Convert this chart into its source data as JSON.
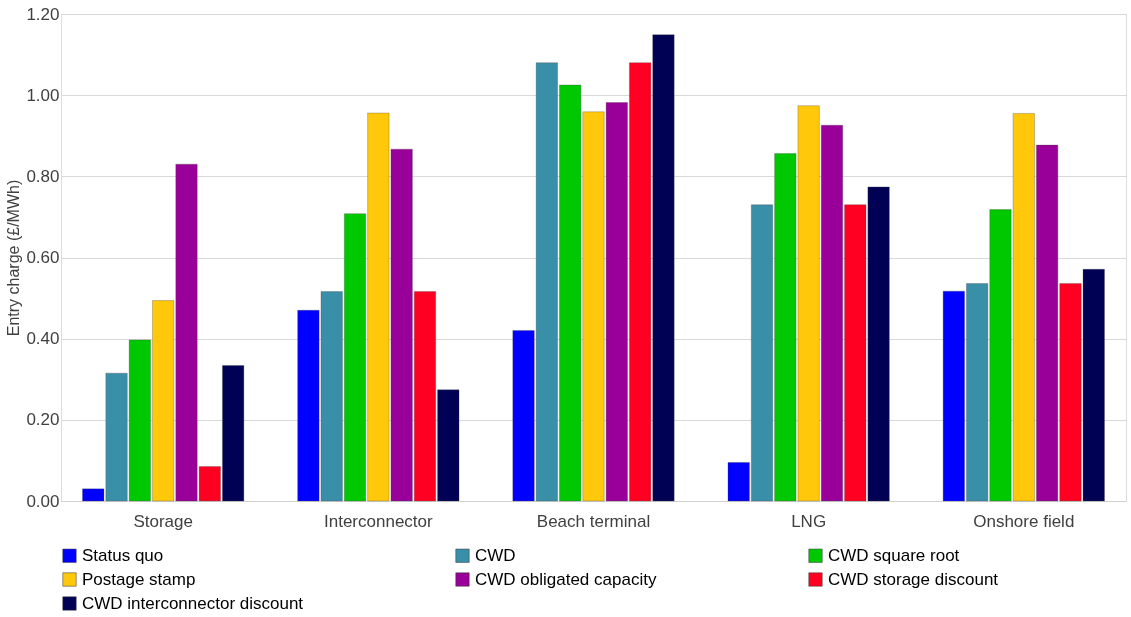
{
  "chart_data": {
    "type": "bar",
    "ylabel": "Entry charge (£/MWh)",
    "categories": [
      "Storage",
      "Interconnector",
      "Beach terminal",
      "LNG",
      "Onshore field"
    ],
    "series": [
      {
        "name": "Status quo",
        "color": "#0000ff",
        "values": [
          0.03,
          0.47,
          0.42,
          0.095,
          0.517
        ]
      },
      {
        "name": "CWD",
        "color": "#3a8fa8",
        "values": [
          0.315,
          0.516,
          1.08,
          0.73,
          0.536
        ]
      },
      {
        "name": "CWD square root",
        "color": "#00c800",
        "values": [
          0.397,
          0.708,
          1.025,
          0.856,
          0.718
        ]
      },
      {
        "name": "Postage stamp",
        "color": "#ffc80a",
        "values": [
          0.494,
          0.956,
          0.959,
          0.974,
          0.955
        ]
      },
      {
        "name": "CWD obligated capacity",
        "color": "#990099",
        "values": [
          0.83,
          0.867,
          0.982,
          0.926,
          0.877
        ]
      },
      {
        "name": "CWD storage discount",
        "color": "#ff0022",
        "values": [
          0.085,
          0.516,
          1.08,
          0.73,
          0.536
        ]
      },
      {
        "name": "CWD interconnector discount",
        "color": "#000055",
        "values": [
          0.334,
          0.274,
          1.149,
          0.774,
          0.571
        ]
      }
    ],
    "ylim": [
      0,
      1.2
    ],
    "yticks": [
      {
        "value": 0,
        "label": "0.00"
      },
      {
        "value": 0.2,
        "label": "0.20"
      },
      {
        "value": 0.4,
        "label": "0.40"
      },
      {
        "value": 0.6,
        "label": "0.60"
      },
      {
        "value": 0.8,
        "label": "0.80"
      },
      {
        "value": 1.0,
        "label": "1.00"
      },
      {
        "value": 1.2,
        "label": "1.20"
      }
    ],
    "grid": "y",
    "legend": "bottom"
  }
}
